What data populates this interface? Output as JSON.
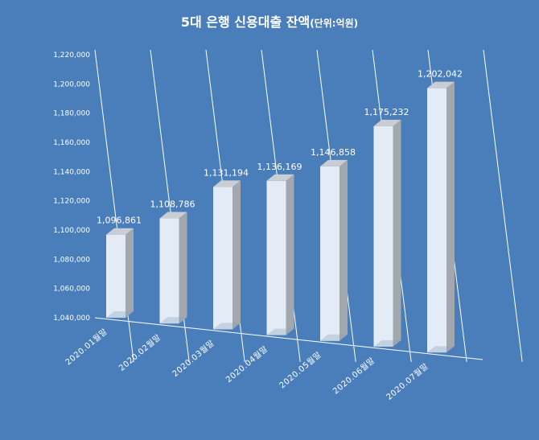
{
  "chart_data": {
    "type": "bar",
    "title": "5대 은행 신용대출 잔액",
    "unit_label": "(단위:억원)",
    "categories": [
      "2020.01월말",
      "2020.02월말",
      "2020.03월말",
      "2020.04월말",
      "2020.05월말",
      "2020.06월말",
      "2020.07월말"
    ],
    "values": [
      1096861,
      1108786,
      1131194,
      1136169,
      1146858,
      1175232,
      1202042
    ],
    "value_labels": [
      "1,096,861",
      "1,108,786",
      "1,131,194",
      "1,136,169",
      "1,146,858",
      "1,175,232",
      "1,202,042"
    ],
    "ylim": [
      1040000,
      1220000
    ],
    "yticks": [
      1040000,
      1060000,
      1080000,
      1100000,
      1120000,
      1140000,
      1160000,
      1180000,
      1200000,
      1220000
    ],
    "ytick_labels": [
      "1,040,000",
      "1,060,000",
      "1,080,000",
      "1,100,000",
      "1,120,000",
      "1,140,000",
      "1,160,000",
      "1,180,000",
      "1,200,000",
      "1,220,000"
    ],
    "xlabel": "",
    "ylabel": "",
    "grid": true,
    "colors": {
      "background": "#4a7ebb",
      "bar_front": "#e3ebf6",
      "bar_side": "#a3a8ae",
      "bar_top": "#c9ced4",
      "gridline": "#ffffff",
      "text": "#ffffff"
    }
  }
}
